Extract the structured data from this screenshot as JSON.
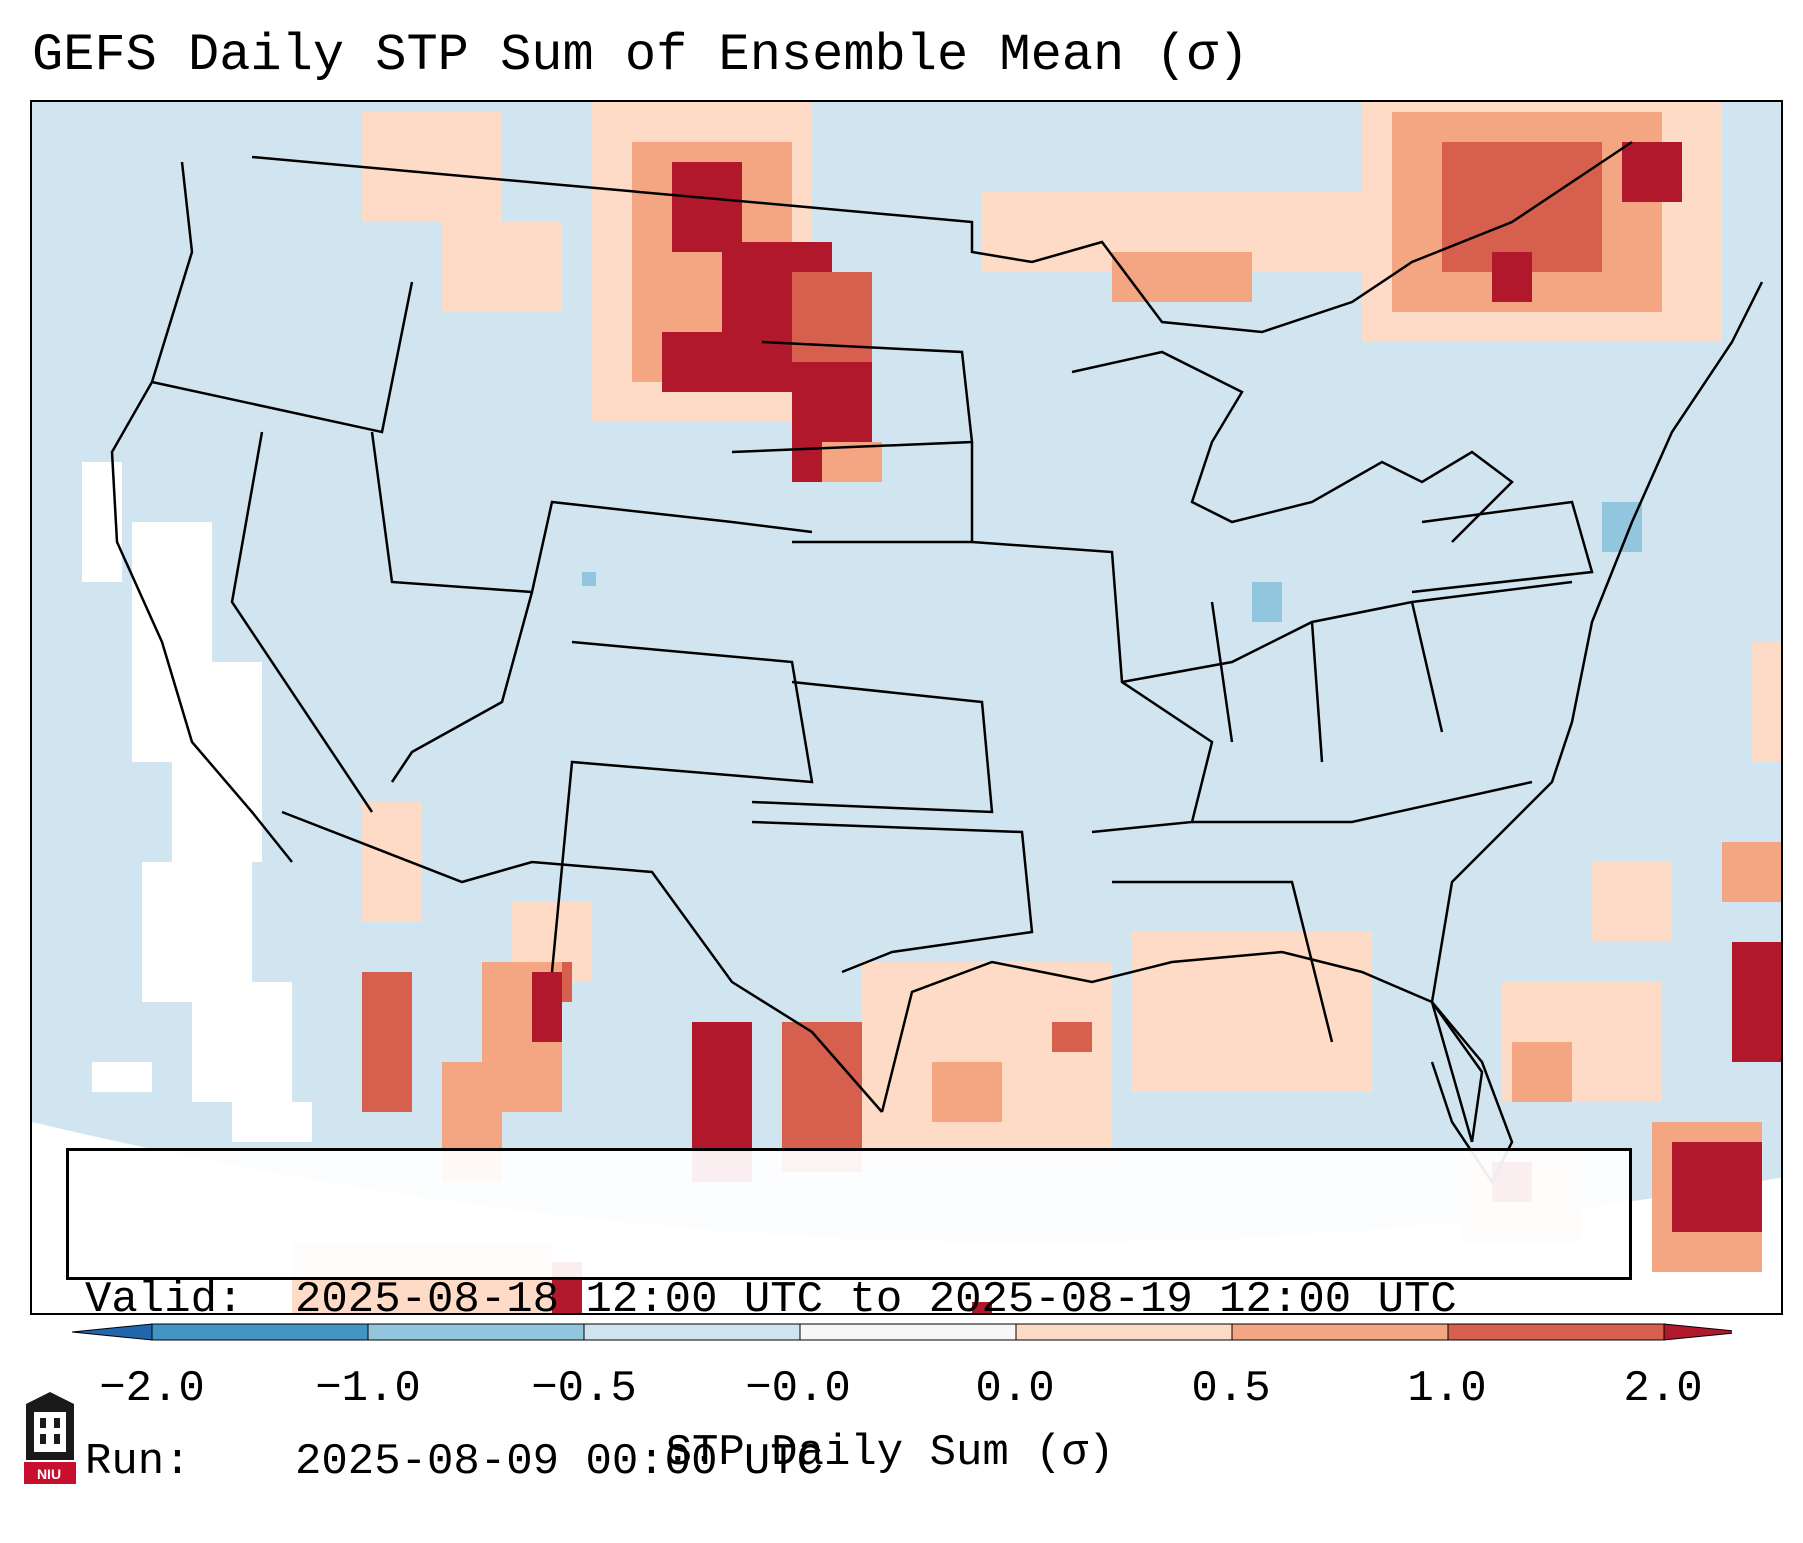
{
  "title": "GEFS Daily STP Sum of Ensemble Mean (σ)",
  "map": {
    "region": "Continental United States",
    "ocean_color": "#d1e5f0",
    "land_color": "#d1e5f0",
    "border_color": "#000000",
    "highlighted_regions": [
      {
        "name": "North Dakota",
        "category": "> 2.0"
      },
      {
        "name": "Eastern Montana",
        "category": "1.0 to 2.0"
      },
      {
        "name": "Southern Quebec",
        "category": "0.5 to 2.0"
      },
      {
        "name": "Northern Mexico",
        "category": "0.5 to 2.0"
      },
      {
        "name": "Bahamas / Western Atlantic",
        "category": "0.5 to 2.0"
      },
      {
        "name": "Gulf of Mexico",
        "category": "0.0 to 1.0"
      }
    ]
  },
  "info": {
    "valid_key": "Valid:",
    "valid_value": "2025-08-18 12:00 UTC to 2025-08-19 12:00 UTC",
    "run_key": "Run:",
    "run_value": "2025-08-09 00:00 UTC"
  },
  "colorbar": {
    "label": "STP Daily Sum (σ)",
    "ticks": [
      "−2.0",
      "−1.0",
      "−0.5",
      "−0.0",
      "0.0",
      "0.5",
      "1.0",
      "2.0"
    ],
    "segments": [
      {
        "from": "<-2.0",
        "color": "#2166ac"
      },
      {
        "from": "-2.0",
        "to": "-1.0",
        "color": "#4393c3"
      },
      {
        "from": "-1.0",
        "to": "-0.5",
        "color": "#92c5de"
      },
      {
        "from": "-0.5",
        "to": "-0.0",
        "color": "#d1e5f0"
      },
      {
        "from": "-0.0",
        "to": "0.0",
        "color": "#f7f7f7"
      },
      {
        "from": "0.0",
        "to": "0.5",
        "color": "#fddbc7"
      },
      {
        "from": "0.5",
        "to": "1.0",
        "color": "#f4a582"
      },
      {
        "from": "1.0",
        "to": "2.0",
        "color": "#d6604d"
      },
      {
        "from": ">2.0",
        "color": "#b2182b"
      }
    ]
  },
  "logo": {
    "text": "NIU",
    "color": "#c8102e"
  }
}
